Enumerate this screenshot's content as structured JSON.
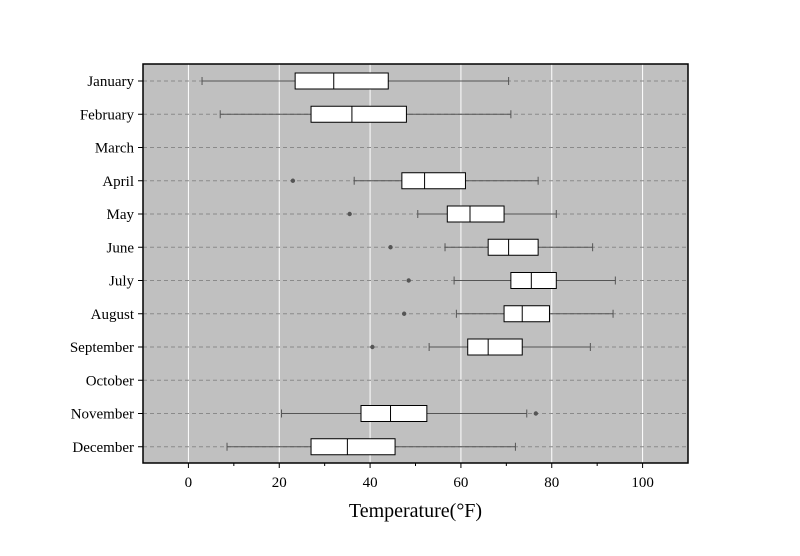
{
  "chart_data": {
    "type": "box",
    "orientation": "horizontal",
    "title": "",
    "xlabel": "Temperature(°F)",
    "ylabel": "",
    "xlim": [
      -10,
      110
    ],
    "xticks": [
      0,
      20,
      40,
      60,
      80,
      100
    ],
    "categories": [
      "January",
      "February",
      "March",
      "April",
      "May",
      "June",
      "July",
      "August",
      "September",
      "October",
      "November",
      "December"
    ],
    "grid": {
      "x": true,
      "y": true,
      "y_style": "dashed"
    },
    "colors": {
      "plot_background": "#c0c0c0",
      "box_fill": "#ffffff",
      "outline": "#000000",
      "whisker": "#555555",
      "grid_x": "#ffffff",
      "grid_y": "#8a8a8a",
      "outlier": "#555555"
    },
    "boxes": [
      {
        "category": "January",
        "whisker_low": 3,
        "q1": 23.5,
        "median": 32,
        "q3": 44,
        "whisker_high": 70.5,
        "outliers": []
      },
      {
        "category": "February",
        "whisker_low": 7,
        "q1": 27,
        "median": 36,
        "q3": 48,
        "whisker_high": 71,
        "outliers": []
      },
      {
        "category": "March",
        "empty": true
      },
      {
        "category": "April",
        "whisker_low": 36.5,
        "q1": 47,
        "median": 52,
        "q3": 61,
        "whisker_high": 77,
        "outliers": [
          23
        ]
      },
      {
        "category": "May",
        "whisker_low": 50.5,
        "q1": 57,
        "median": 62,
        "q3": 69.5,
        "whisker_high": 81,
        "outliers": [
          35.5
        ]
      },
      {
        "category": "June",
        "whisker_low": 56.5,
        "q1": 66,
        "median": 70.5,
        "q3": 77,
        "whisker_high": 89,
        "outliers": [
          44.5
        ]
      },
      {
        "category": "July",
        "whisker_low": 58.5,
        "q1": 71,
        "median": 75.5,
        "q3": 81,
        "whisker_high": 94,
        "outliers": [
          48.5
        ]
      },
      {
        "category": "August",
        "whisker_low": 59,
        "q1": 69.5,
        "median": 73.5,
        "q3": 79.5,
        "whisker_high": 93.5,
        "outliers": [
          47.5
        ]
      },
      {
        "category": "September",
        "whisker_low": 53,
        "q1": 61.5,
        "median": 66,
        "q3": 73.5,
        "whisker_high": 88.5,
        "outliers": [
          40.5
        ]
      },
      {
        "category": "October",
        "empty": true
      },
      {
        "category": "November",
        "whisker_low": 20.5,
        "q1": 38,
        "median": 44.5,
        "q3": 52.5,
        "whisker_high": 74.5,
        "outliers": [
          76.5
        ]
      },
      {
        "category": "December",
        "whisker_low": 8.5,
        "q1": 27,
        "median": 35,
        "q3": 45.5,
        "whisker_high": 72,
        "outliers": []
      }
    ]
  }
}
